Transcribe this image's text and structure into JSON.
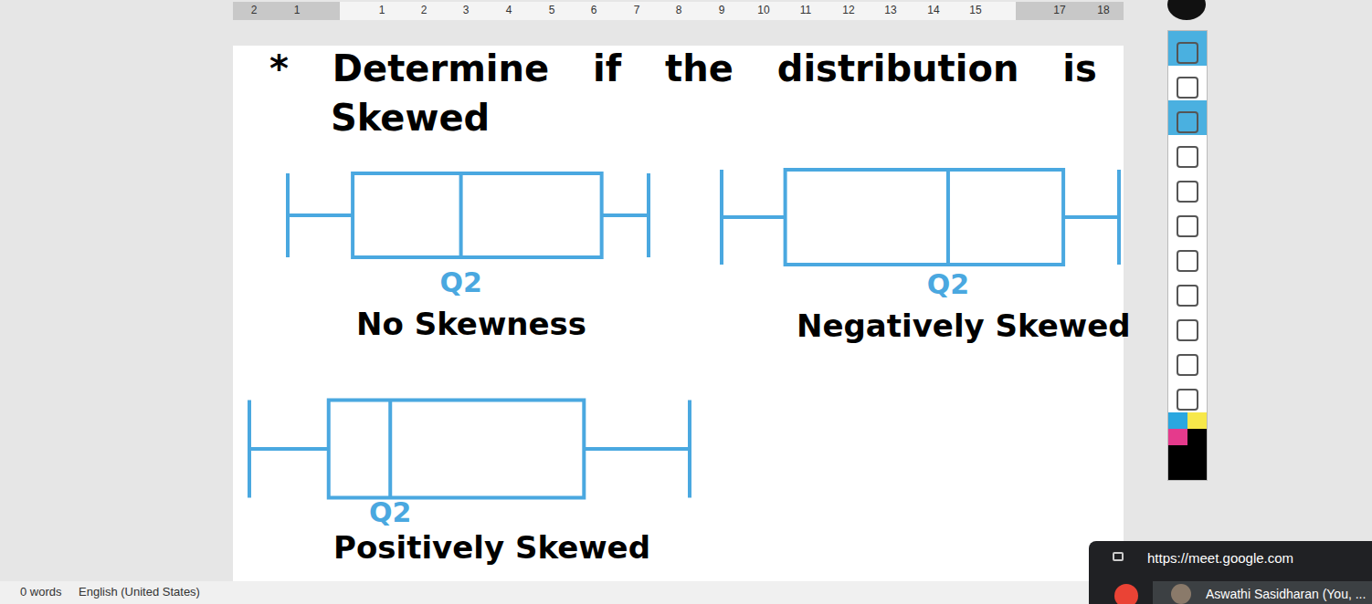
{
  "window": {
    "ruler": [
      "2",
      "1",
      "1",
      "2",
      "3",
      "4",
      "5",
      "6",
      "7",
      "8",
      "9",
      "10",
      "11",
      "12",
      "13",
      "14",
      "15",
      "17",
      "18"
    ],
    "status_bar": [
      "0 words",
      "English (United States)"
    ],
    "meet": {
      "url": "https://meet.google.com",
      "participant": "Aswathi Sasidharan (You, ..."
    }
  },
  "heading": [
    "* Determine if the distribution is",
    "Skewed"
  ],
  "chart_data": [
    {
      "type": "boxplot",
      "caption": "No Skewness",
      "median_label": "Q2",
      "stats": [
        0,
        18,
        48,
        87,
        100
      ],
      "xlim": [
        0,
        100
      ],
      "tick_labels": false,
      "color": "#4aa8e0"
    },
    {
      "type": "boxplot",
      "caption": "Negatively Skewed",
      "median_label": "Q2",
      "stats": [
        0,
        16,
        57,
        86,
        100
      ],
      "xlim": [
        0,
        100
      ],
      "tick_labels": false,
      "color": "#4aa8e0"
    },
    {
      "type": "boxplot",
      "caption": "Positively Skewed",
      "median_label": "Q2",
      "stats": [
        0,
        18,
        32,
        76,
        100
      ],
      "xlim": [
        0,
        100
      ],
      "tick_labels": false,
      "color": "#4aa8e0"
    }
  ]
}
